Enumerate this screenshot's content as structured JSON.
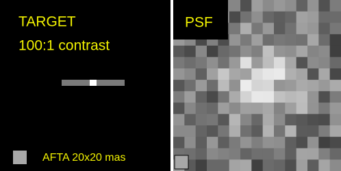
{
  "left": {
    "title": "TARGET",
    "subtitle": "100:1 contrast",
    "scale_label": "AFTA 20x20 mas"
  },
  "right": {
    "title": "PSF"
  }
}
